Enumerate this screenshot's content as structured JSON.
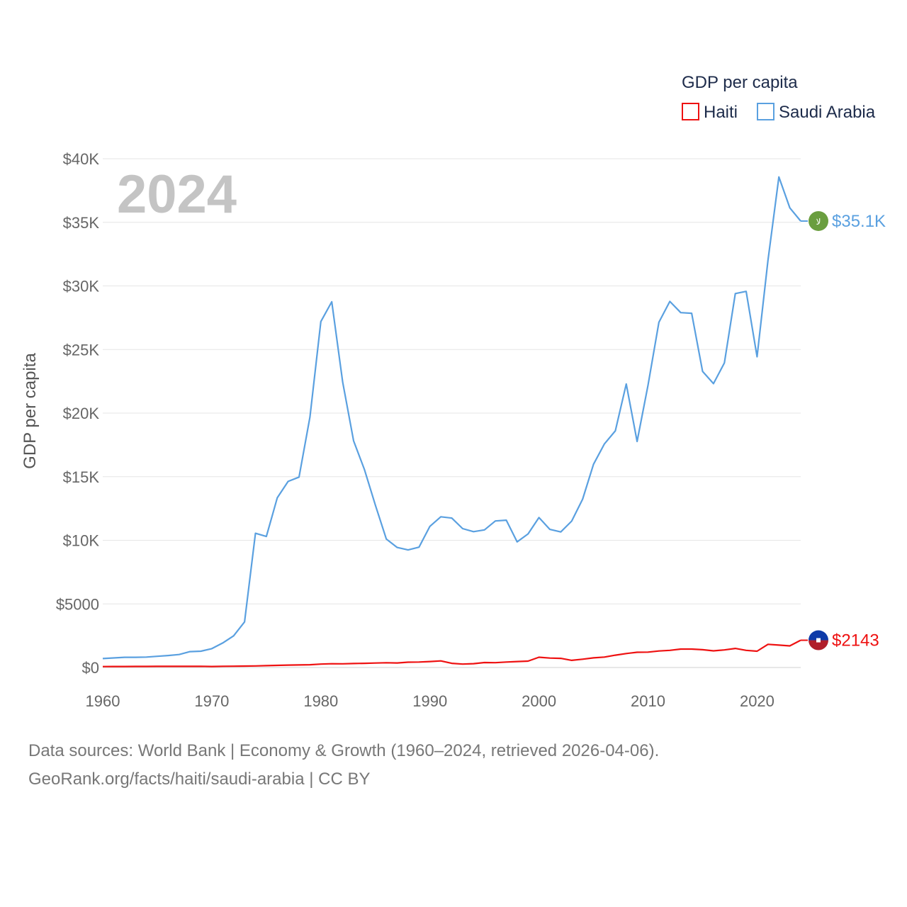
{
  "chart_data": {
    "type": "line",
    "title": "GDP per capita",
    "year_label": "2024",
    "ylabel": "GDP per capita",
    "xlabel": "",
    "xlim": [
      1960,
      2024
    ],
    "ylim": [
      0,
      40000
    ],
    "x_ticks": [
      1960,
      1970,
      1980,
      1990,
      2000,
      2010,
      2020
    ],
    "y_ticks": [
      {
        "value": 0,
        "label": "$0"
      },
      {
        "value": 5000,
        "label": "$5000"
      },
      {
        "value": 10000,
        "label": "$10K"
      },
      {
        "value": 15000,
        "label": "$15K"
      },
      {
        "value": 20000,
        "label": "$20K"
      },
      {
        "value": 25000,
        "label": "$25K"
      },
      {
        "value": 30000,
        "label": "$30K"
      },
      {
        "value": 35000,
        "label": "$35K"
      },
      {
        "value": 40000,
        "label": "$40K"
      }
    ],
    "legend": {
      "title": "GDP per capita",
      "position": "top-right"
    },
    "x": [
      1960,
      1961,
      1962,
      1963,
      1964,
      1965,
      1966,
      1967,
      1968,
      1969,
      1970,
      1971,
      1972,
      1973,
      1974,
      1975,
      1976,
      1977,
      1978,
      1979,
      1980,
      1981,
      1982,
      1983,
      1984,
      1985,
      1986,
      1987,
      1988,
      1989,
      1990,
      1991,
      1992,
      1993,
      1994,
      1995,
      1996,
      1997,
      1998,
      1999,
      2000,
      2001,
      2002,
      2003,
      2004,
      2005,
      2006,
      2007,
      2008,
      2009,
      2010,
      2011,
      2012,
      2013,
      2014,
      2015,
      2016,
      2017,
      2018,
      2019,
      2020,
      2021,
      2022,
      2023,
      2024
    ],
    "series": [
      {
        "name": "Saudi Arabia",
        "color": "#5aa0e0",
        "end_label": "$35.1K",
        "flag": "saudi-arabia-flag-icon",
        "flag_text": "لا",
        "values": [
          700,
          750,
          800,
          800,
          820,
          880,
          940,
          1020,
          1250,
          1280,
          1480,
          1930,
          2490,
          3580,
          10550,
          10300,
          13340,
          14630,
          14970,
          19690,
          27200,
          28750,
          22440,
          17820,
          15550,
          12750,
          10100,
          9440,
          9240,
          9460,
          11100,
          11850,
          11750,
          10920,
          10680,
          10820,
          11520,
          11580,
          9880,
          10500,
          11790,
          10860,
          10660,
          11510,
          13230,
          15980,
          17580,
          18610,
          22290,
          17770,
          22190,
          27150,
          28780,
          27900,
          27850,
          23280,
          22320,
          23950,
          29400,
          29570,
          24430,
          32010,
          38570,
          36140,
          35100
        ]
      },
      {
        "name": "Haiti",
        "color": "#ee1111",
        "end_label": "$2143",
        "flag": "haiti-flag-icon",
        "values": [
          75,
          78,
          80,
          82,
          85,
          87,
          88,
          89,
          90,
          92,
          80,
          95,
          100,
          110,
          125,
          145,
          165,
          190,
          200,
          220,
          270,
          295,
          290,
          310,
          330,
          350,
          375,
          355,
          420,
          430,
          470,
          520,
          330,
          270,
          300,
          390,
          380,
          430,
          470,
          500,
          810,
          740,
          720,
          560,
          650,
          760,
          820,
          970,
          1100,
          1200,
          1210,
          1300,
          1350,
          1450,
          1450,
          1400,
          1310,
          1380,
          1500,
          1350,
          1280,
          1820,
          1760,
          1700,
          2143
        ]
      }
    ]
  },
  "footer": {
    "line1": "Data sources: World Bank | Economy & Growth (1960–2024, retrieved 2026-04-06).",
    "line2": "GeoRank.org/facts/haiti/saudi-arabia | CC BY"
  }
}
